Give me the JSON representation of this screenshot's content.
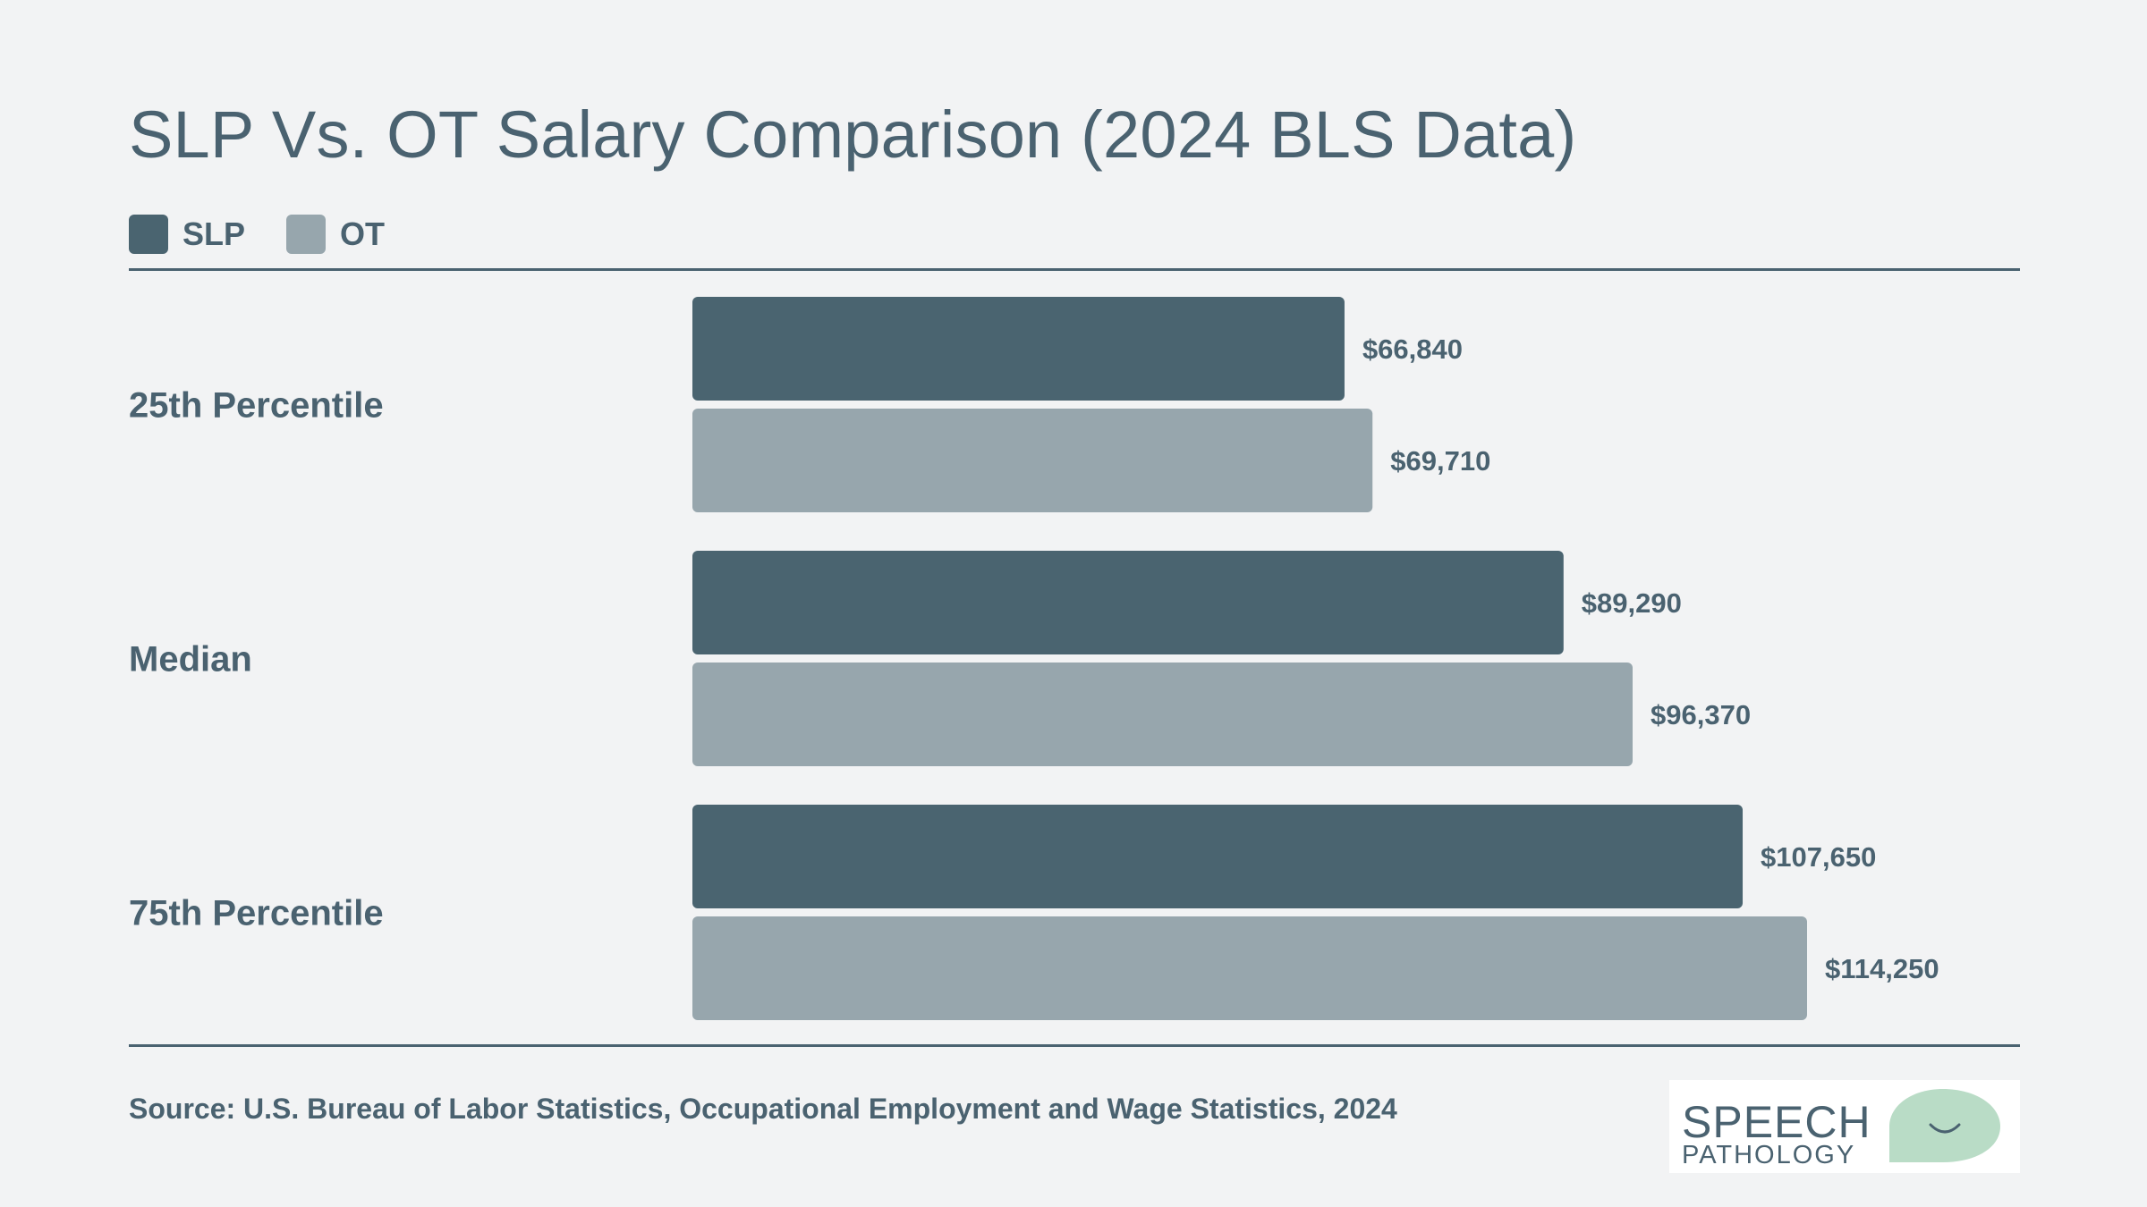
{
  "chart_data": {
    "type": "bar",
    "orientation": "horizontal",
    "title": "SLP Vs. OT Salary Comparison (2024 BLS Data)",
    "categories": [
      "25th Percentile",
      "Median",
      "75th Percentile"
    ],
    "series": [
      {
        "name": "SLP",
        "color": "#4a6470",
        "values": [
          66840,
          89290,
          107650
        ],
        "labels": [
          "$66,840",
          "$89,290",
          "$107,650"
        ]
      },
      {
        "name": "OT",
        "color": "#97a6ad",
        "values": [
          69710,
          96370,
          114250
        ],
        "labels": [
          "$69,710",
          "$96,370",
          "$114,250"
        ]
      }
    ],
    "xlim": [
      0,
      120000
    ],
    "grid": false,
    "legend_position": "top-left",
    "source": "Source: U.S. Bureau of Labor Statistics, Occupational Employment and Wage Statistics, 2024"
  },
  "logo": {
    "line1": "SPEECH",
    "line2": "PATHOLOGY",
    "color": "#b9dcc6"
  }
}
